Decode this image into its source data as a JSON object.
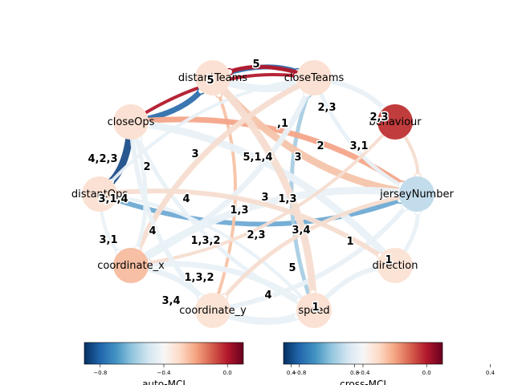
{
  "graph": {
    "nodes": [
      {
        "id": "distantTeams",
        "label": "distantTeams",
        "color": "#fbe1d3"
      },
      {
        "id": "closeTeams",
        "label": "closeTeams",
        "color": "#fbe1d3"
      },
      {
        "id": "closeOps",
        "label": "closeOps",
        "color": "#fbe1d3"
      },
      {
        "id": "behaviour",
        "label": "behaviour",
        "color": "#c13c3c"
      },
      {
        "id": "distantOps",
        "label": "distantOps",
        "color": "#fbe1d3"
      },
      {
        "id": "jerseyNumber",
        "label": "jerseyNumber",
        "color": "#c3dcec"
      },
      {
        "id": "coordinate_x",
        "label": "coordinate_x",
        "color": "#f7bfa3"
      },
      {
        "id": "direction",
        "label": "direction",
        "color": "#fbe4d6"
      },
      {
        "id": "coordinate_y",
        "label": "coordinate_y",
        "color": "#fbe4d6"
      },
      {
        "id": "speed",
        "label": "speed",
        "color": "#fbe1d3"
      }
    ],
    "edges": [
      {
        "from": "distantTeams",
        "to": "closeTeams",
        "color": "#e9f1f7"
      },
      {
        "from": "distantTeams",
        "to": "closeTeams",
        "color": "#2f6fac"
      },
      {
        "from": "closeTeams",
        "to": "distantTeams",
        "color": "#b2182b"
      },
      {
        "from": "closeOps",
        "to": "closeTeams",
        "color": "#b2182b"
      },
      {
        "from": "closeOps",
        "to": "distantTeams",
        "color": "#2f6fac"
      },
      {
        "from": "closeOps",
        "to": "distantOps",
        "color": "#1d4f8a"
      },
      {
        "from": "distantOps",
        "to": "jerseyNumber",
        "color": "#6faad4"
      },
      {
        "from": "speed",
        "to": "closeTeams",
        "color": "#a9cde3"
      },
      {
        "from": "coordinate_y",
        "to": "distantTeams",
        "color": "#f7c3a6"
      },
      {
        "from": "closeOps",
        "to": "jerseyNumber",
        "color": "#f4a58a"
      },
      {
        "from": "distantTeams",
        "to": "jerseyNumber",
        "color": "#f5c4ab"
      },
      {
        "from": "closeTeams",
        "to": "behaviour",
        "color": "#e9f1f7"
      },
      {
        "from": "closeTeams",
        "to": "jerseyNumber",
        "color": "#e9f1f7"
      },
      {
        "from": "distantOps",
        "to": "closeTeams",
        "color": "#e9f1f7"
      },
      {
        "from": "coordinate_x",
        "to": "closeTeams",
        "color": "#e9f1f7"
      },
      {
        "from": "coordinate_x",
        "to": "jerseyNumber",
        "color": "#e9f1f7"
      },
      {
        "from": "coordinate_y",
        "to": "jerseyNumber",
        "color": "#e9f1f7"
      },
      {
        "from": "speed",
        "to": "closeOps",
        "color": "#e9f1f7"
      },
      {
        "from": "speed",
        "to": "distantOps",
        "color": "#e9f1f7"
      },
      {
        "from": "coordinate_x",
        "to": "speed",
        "color": "#e9f1f7"
      },
      {
        "from": "direction",
        "to": "closeOps",
        "color": "#e9f1f7"
      },
      {
        "from": "distantOps",
        "to": "direction",
        "color": "#f6ddd0"
      },
      {
        "from": "jerseyNumber",
        "to": "coordinate_y",
        "color": "#f6ddd0"
      },
      {
        "from": "behaviour",
        "to": "coordinate_x",
        "color": "#f6ddd0"
      },
      {
        "from": "closeTeams",
        "to": "coordinate_x",
        "color": "#f6ddd0"
      },
      {
        "from": "distantTeams",
        "to": "speed",
        "color": "#f6ddd0"
      },
      {
        "from": "closeOps",
        "to": "coordinate_y",
        "color": "#e9f1f7"
      },
      {
        "from": "closeOps",
        "to": "coordinate_x",
        "color": "#e9f1f7"
      },
      {
        "from": "distantOps",
        "to": "coordinate_x",
        "color": "#e9f1f7"
      },
      {
        "from": "coordinate_x",
        "to": "coordinate_y",
        "color": "#e9f1f7"
      },
      {
        "from": "coordinate_y",
        "to": "speed",
        "color": "#e9f1f7"
      },
      {
        "from": "speed",
        "to": "direction",
        "color": "#e9f1f7"
      },
      {
        "from": "direction",
        "to": "jerseyNumber",
        "color": "#e9f1f7"
      },
      {
        "from": "behaviour",
        "to": "jerseyNumber",
        "color": "#f6ddd0"
      }
    ],
    "edge_labels": [
      "5",
      "5",
      "2,3",
      "2,3",
      ",1",
      "4,2,3",
      "2",
      "3,1",
      "3",
      "5,1,4",
      "3",
      "3,1,4",
      "4",
      "3",
      "1,3",
      "1,3",
      "4",
      "3,1",
      "1,3,2",
      "2,3",
      "3,4",
      "1",
      "1",
      "5",
      "1,3,2",
      "4",
      "3,4",
      "1",
      "2"
    ]
  },
  "colorbars": [
    {
      "title": "auto-MCI",
      "ticks": [
        "−0.8",
        "−0.4",
        "0.0",
        "0.4",
        "0.8"
      ]
    },
    {
      "title": "cross-MCI",
      "ticks": [
        "−0.8",
        "−0.4",
        "0.0",
        "0.4",
        "0.8"
      ]
    }
  ]
}
